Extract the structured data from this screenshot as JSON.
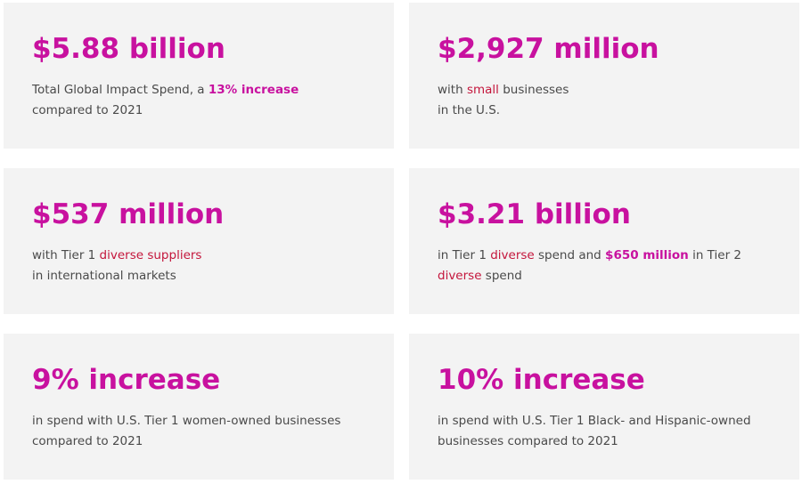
{
  "cards": [
    {
      "stat": "$5.88 billion",
      "desc": {
        "a": "Total Global Impact Spend, a ",
        "b": "13% increase",
        "c": "compared to 2021"
      }
    },
    {
      "stat": "$2,927 million",
      "desc": {
        "a": "with ",
        "b": "small",
        "c": " businesses",
        "d": "in the U.S."
      }
    },
    {
      "stat": "$537 million",
      "desc": {
        "a": "with Tier 1 ",
        "b": "diverse suppliers",
        "c": "in international markets"
      }
    },
    {
      "stat": "$3.21 billion",
      "desc": {
        "a": "in Tier 1 ",
        "b": "diverse",
        "c": " spend and ",
        "d": "$650 million",
        "e": " in Tier 2",
        "f": "diverse",
        "g": " spend"
      }
    },
    {
      "stat": "9% increase",
      "desc": {
        "a": "in spend with U.S. Tier 1 women-owned businesses",
        "b": "compared to 2021"
      }
    },
    {
      "stat": "10% increase",
      "desc": {
        "a": "in spend with U.S. Tier 1 Black- and Hispanic-owned",
        "b": "businesses compared to 2021"
      }
    }
  ],
  "colors": {
    "accent": "#c8119f",
    "link": "#c4163c",
    "text": "#4a4a4a",
    "card_bg": "#f3f3f3"
  }
}
